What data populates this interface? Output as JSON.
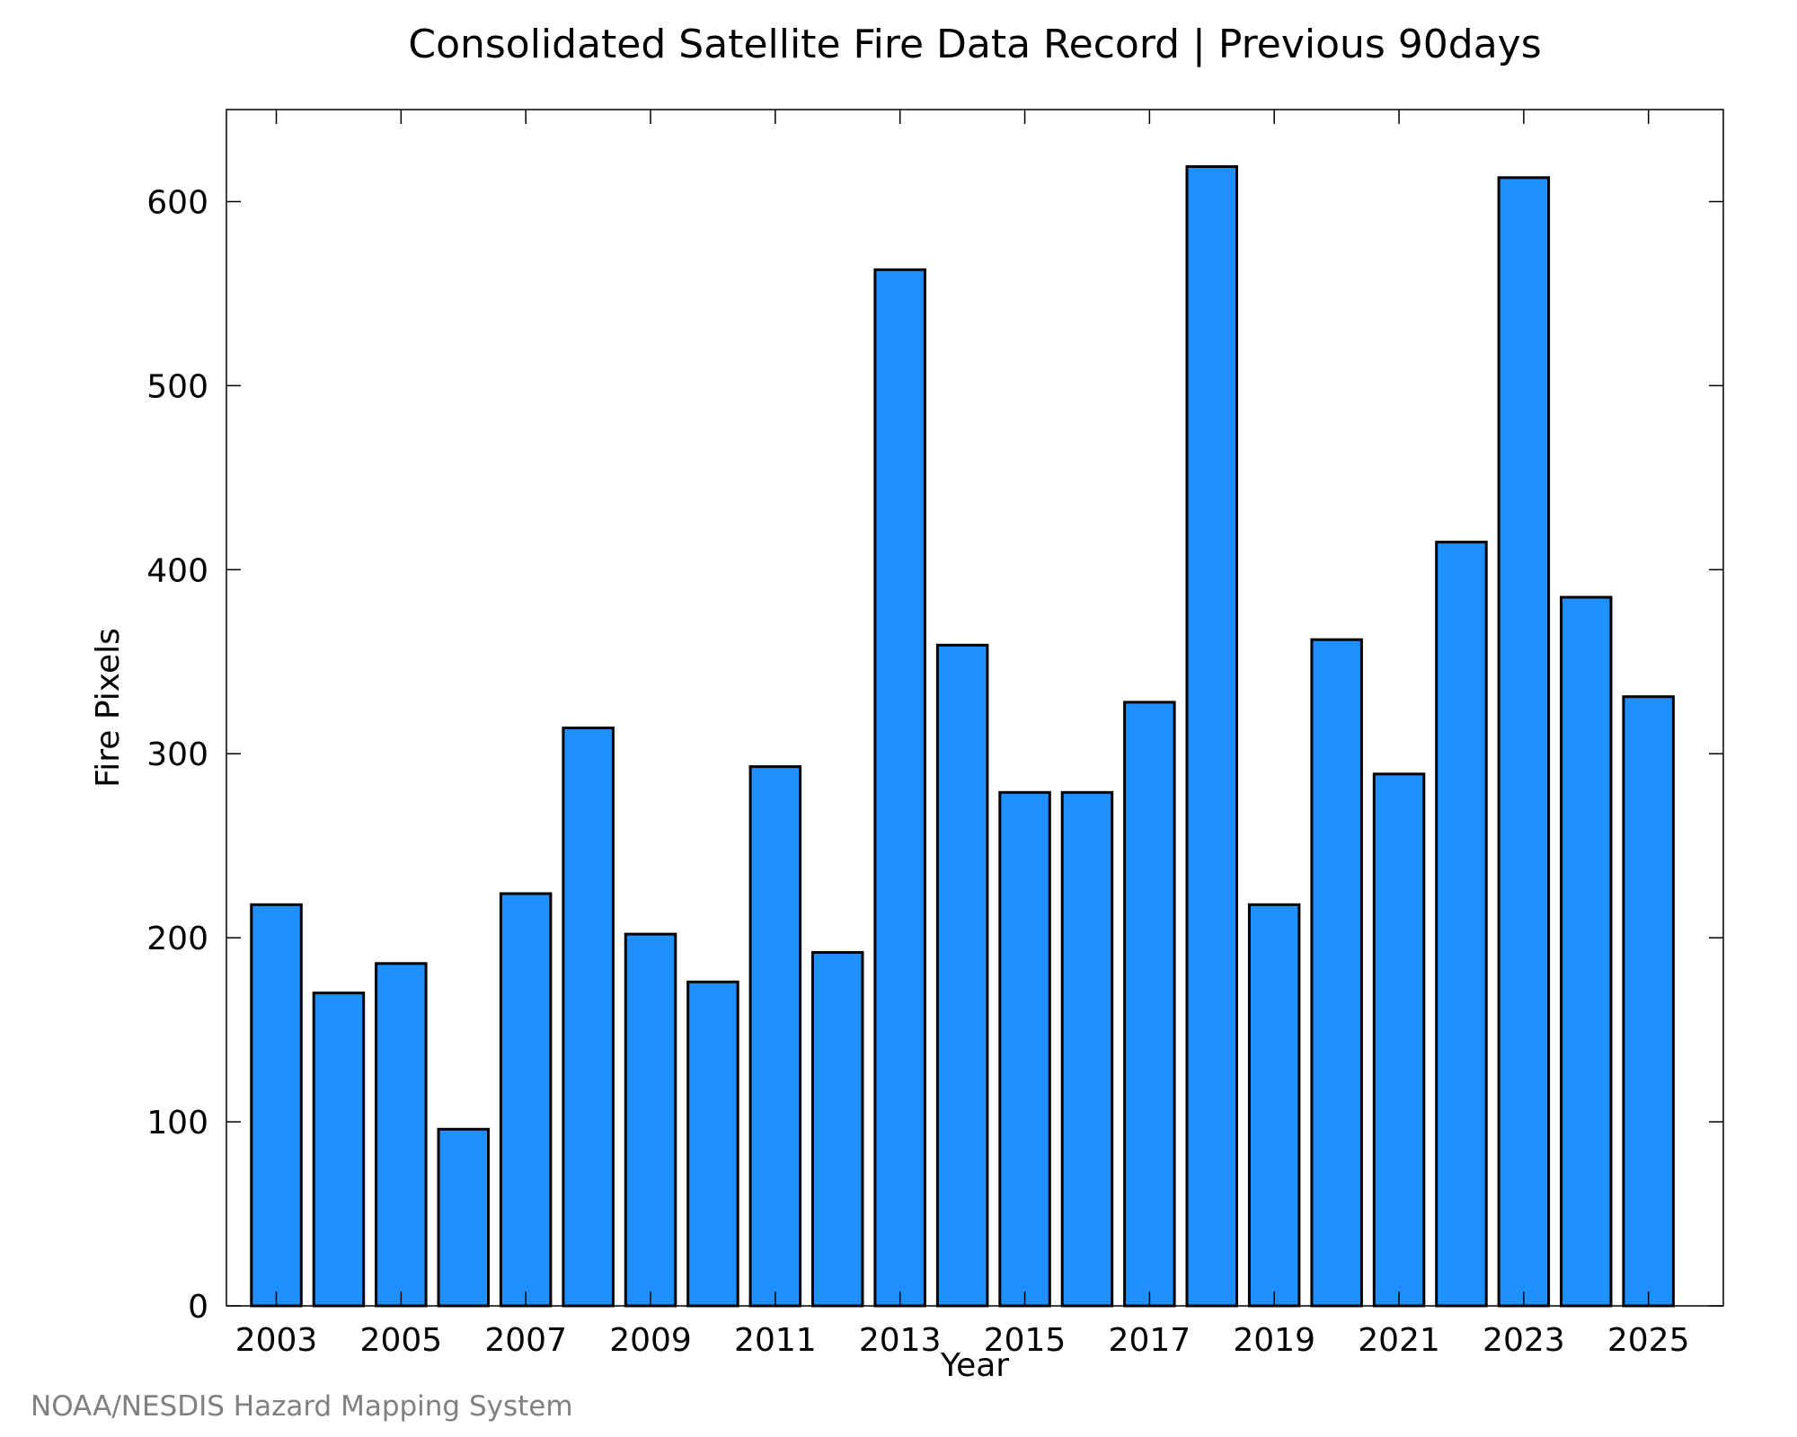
{
  "chart_data": {
    "type": "bar",
    "title": "Consolidated Satellite Fire Data Record | Previous 90days",
    "xlabel": "Year",
    "ylabel": "Fire Pixels",
    "categories": [
      2003,
      2004,
      2005,
      2006,
      2007,
      2008,
      2009,
      2010,
      2011,
      2012,
      2013,
      2014,
      2015,
      2016,
      2017,
      2018,
      2019,
      2020,
      2021,
      2022,
      2023,
      2024,
      2025
    ],
    "values": [
      218,
      170,
      186,
      96,
      224,
      314,
      202,
      176,
      293,
      192,
      563,
      359,
      279,
      279,
      328,
      619,
      218,
      362,
      289,
      415,
      613,
      385,
      331
    ],
    "x_tick_labels": [
      "2003",
      "2005",
      "2007",
      "2009",
      "2011",
      "2013",
      "2015",
      "2017",
      "2019",
      "2021",
      "2023",
      "2025"
    ],
    "y_ticks": [
      0,
      100,
      200,
      300,
      400,
      500,
      600
    ],
    "ylim": [
      0,
      650
    ],
    "xlim": [
      2002.2,
      2026.2
    ],
    "bar_color": "#1E90FF",
    "grid": false,
    "legend": "none"
  },
  "credit": "NOAA/NESDIS Hazard Mapping System"
}
